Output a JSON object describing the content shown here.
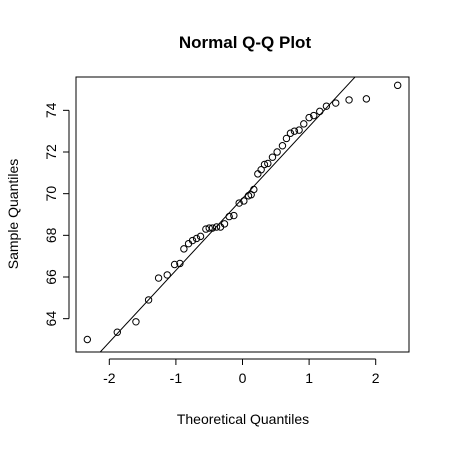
{
  "chart_data": {
    "type": "scatter",
    "title": "Normal Q-Q Plot",
    "xlabel": "Theoretical Quantiles",
    "ylabel": "Sample Quantiles",
    "xlim": [
      -2.5,
      2.5
    ],
    "ylim": [
      62.4,
      75.6
    ],
    "x_ticks": [
      "-2",
      "-1",
      "0",
      "1",
      "2"
    ],
    "x_tick_values": [
      -2,
      -1,
      0,
      1,
      2
    ],
    "y_ticks": [
      "64",
      "66",
      "68",
      "70",
      "72",
      "74"
    ],
    "y_tick_values": [
      64,
      66,
      68,
      70,
      72,
      74
    ],
    "grid": false,
    "point_color": "#000000",
    "reference_line": {
      "intercept": 69.77,
      "slope": 3.45
    },
    "series": [
      {
        "values": [
          {
            "x": -2.33,
            "y": 63.0
          },
          {
            "x": -1.88,
            "y": 63.35
          },
          {
            "x": -1.6,
            "y": 63.85
          },
          {
            "x": -1.41,
            "y": 64.9
          },
          {
            "x": -1.26,
            "y": 65.95
          },
          {
            "x": -1.13,
            "y": 66.1
          },
          {
            "x": -1.02,
            "y": 66.6
          },
          {
            "x": -0.94,
            "y": 66.65
          },
          {
            "x": -0.88,
            "y": 67.35
          },
          {
            "x": -0.81,
            "y": 67.6
          },
          {
            "x": -0.75,
            "y": 67.75
          },
          {
            "x": -0.69,
            "y": 67.85
          },
          {
            "x": -0.63,
            "y": 67.95
          },
          {
            "x": -0.55,
            "y": 68.3
          },
          {
            "x": -0.5,
            "y": 68.35
          },
          {
            "x": -0.45,
            "y": 68.35
          },
          {
            "x": -0.39,
            "y": 68.4
          },
          {
            "x": -0.33,
            "y": 68.4
          },
          {
            "x": -0.27,
            "y": 68.55
          },
          {
            "x": -0.2,
            "y": 68.9
          },
          {
            "x": -0.13,
            "y": 68.95
          },
          {
            "x": -0.05,
            "y": 69.55
          },
          {
            "x": 0.02,
            "y": 69.65
          },
          {
            "x": 0.09,
            "y": 69.9
          },
          {
            "x": 0.13,
            "y": 69.95
          },
          {
            "x": 0.17,
            "y": 70.2
          },
          {
            "x": 0.23,
            "y": 70.95
          },
          {
            "x": 0.28,
            "y": 71.15
          },
          {
            "x": 0.33,
            "y": 71.4
          },
          {
            "x": 0.38,
            "y": 71.45
          },
          {
            "x": 0.45,
            "y": 71.75
          },
          {
            "x": 0.52,
            "y": 72.0
          },
          {
            "x": 0.6,
            "y": 72.3
          },
          {
            "x": 0.66,
            "y": 72.65
          },
          {
            "x": 0.72,
            "y": 72.9
          },
          {
            "x": 0.78,
            "y": 73.0
          },
          {
            "x": 0.85,
            "y": 73.05
          },
          {
            "x": 0.92,
            "y": 73.35
          },
          {
            "x": 1.0,
            "y": 73.65
          },
          {
            "x": 1.07,
            "y": 73.75
          },
          {
            "x": 1.16,
            "y": 73.95
          },
          {
            "x": 1.26,
            "y": 74.2
          },
          {
            "x": 1.4,
            "y": 74.35
          },
          {
            "x": 1.6,
            "y": 74.5
          },
          {
            "x": 1.86,
            "y": 74.55
          },
          {
            "x": 2.33,
            "y": 75.2
          }
        ]
      }
    ]
  }
}
